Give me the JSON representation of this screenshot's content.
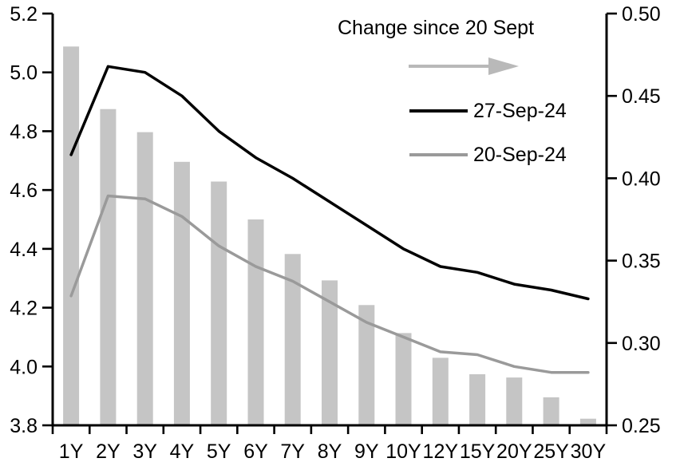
{
  "chart_data": {
    "type": "bar",
    "subtype": "combo-bar-line-dual-axis",
    "categories": [
      "1Y",
      "2Y",
      "3Y",
      "4Y",
      "5Y",
      "6Y",
      "7Y",
      "8Y",
      "9Y",
      "10Y",
      "12Y",
      "15Y",
      "20Y",
      "25Y",
      "30Y"
    ],
    "series": [
      {
        "name": "27-Sep-24",
        "type": "line",
        "axis": "left",
        "color": "#000000",
        "values": [
          4.72,
          5.02,
          5.0,
          4.92,
          4.8,
          4.71,
          4.64,
          4.56,
          4.48,
          4.4,
          4.34,
          4.32,
          4.28,
          4.26,
          4.23
        ]
      },
      {
        "name": "20-Sep-24",
        "type": "line",
        "axis": "left",
        "color": "#9a9a9a",
        "values": [
          4.24,
          4.58,
          4.57,
          4.51,
          4.41,
          4.34,
          4.29,
          4.22,
          4.15,
          4.1,
          4.05,
          4.04,
          4.0,
          3.98,
          3.98
        ]
      },
      {
        "name": "Change since 20 Sept",
        "type": "bar",
        "axis": "right",
        "color": "#c5c5c5",
        "values": [
          0.48,
          0.442,
          0.428,
          0.41,
          0.398,
          0.375,
          0.354,
          0.338,
          0.323,
          0.306,
          0.291,
          0.281,
          0.279,
          0.267,
          0.254
        ]
      }
    ],
    "left_axis": {
      "min": 3.8,
      "max": 5.2,
      "tick_labels": [
        "3.8",
        "4.0",
        "4.2",
        "4.4",
        "4.6",
        "4.8",
        "5.0",
        "5.2"
      ]
    },
    "right_axis": {
      "min": 0.25,
      "max": 0.5,
      "tick_labels": [
        "0.25",
        "0.30",
        "0.35",
        "0.40",
        "0.45",
        "0.50"
      ]
    },
    "grid": "off",
    "legend": {
      "position": "top-right-inside",
      "title": "Change since 20 Sept",
      "arrow_color": "#b9b9b9",
      "items": [
        {
          "label": "27-Sep-24",
          "color": "#000000"
        },
        {
          "label": "20-Sep-24",
          "color": "#9a9a9a"
        }
      ]
    },
    "axis_color": "#000000"
  }
}
